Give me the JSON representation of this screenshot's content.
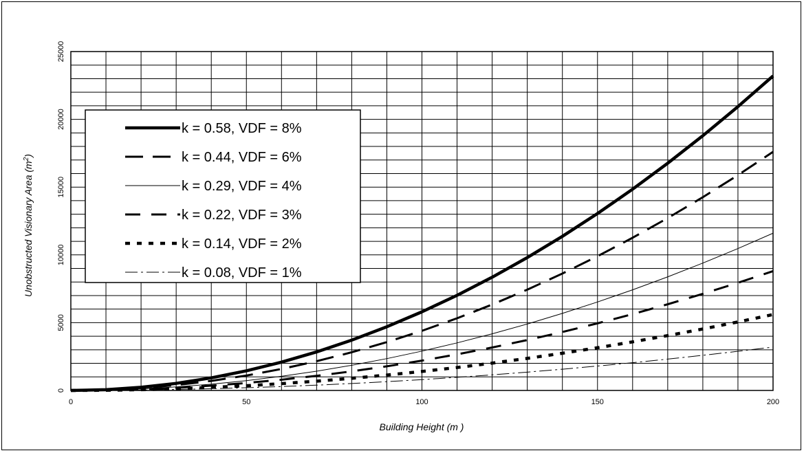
{
  "chart_data": {
    "type": "line",
    "title": "",
    "xlabel": "Building Height (m )",
    "ylabel": "Unobstructed Visionary Area (m²)",
    "ylabel_main": "Unobstructed Visionary Area (m",
    "ylabel_sup": "2",
    "ylabel_close": ")",
    "xlim": [
      0,
      200
    ],
    "ylim": [
      0,
      25000
    ],
    "x_ticks": [
      0,
      50,
      100,
      150,
      200
    ],
    "y_ticks": [
      0,
      5000,
      10000,
      15000,
      20000,
      25000
    ],
    "grid": true,
    "legend_position": "left",
    "x": [
      0,
      10,
      20,
      30,
      40,
      50,
      60,
      70,
      80,
      90,
      100,
      110,
      120,
      130,
      140,
      150,
      160,
      170,
      180,
      190,
      200
    ],
    "series": [
      {
        "name": "k = 0.58, VDF = 8%",
        "values": [
          0,
          58,
          232,
          522,
          928,
          1450,
          2088,
          2842,
          3712,
          4698,
          5800,
          7018,
          8352,
          9802,
          11368,
          13050,
          14848,
          16762,
          18792,
          20938,
          23200
        ],
        "style": "thick-solid"
      },
      {
        "name": "k = 0.44, VDF = 6%",
        "values": [
          0,
          44,
          176,
          396,
          704,
          1100,
          1584,
          2156,
          2816,
          3564,
          4400,
          5324,
          6336,
          7436,
          8624,
          9900,
          11264,
          12716,
          14256,
          15884,
          17600
        ],
        "style": "long-dash"
      },
      {
        "name": "k = 0.29, VDF = 4%",
        "values": [
          0,
          29,
          116,
          261,
          464,
          725,
          1044,
          1421,
          1856,
          2349,
          2900,
          3509,
          4176,
          4901,
          5684,
          6525,
          7424,
          8381,
          9396,
          10469,
          11600
        ],
        "style": "thin-solid"
      },
      {
        "name": "k = 0.22, VDF = 3%",
        "values": [
          0,
          22,
          88,
          198,
          352,
          550,
          792,
          1078,
          1408,
          1782,
          2200,
          2662,
          3168,
          3718,
          4312,
          4950,
          5632,
          6358,
          7128,
          7942,
          8800
        ],
        "style": "medium-dash"
      },
      {
        "name": "k = 0.14, VDF = 2%",
        "values": [
          0,
          14,
          56,
          126,
          224,
          350,
          504,
          686,
          896,
          1134,
          1400,
          1694,
          2016,
          2366,
          2744,
          3150,
          3584,
          4046,
          4536,
          5054,
          5600
        ],
        "style": "dotted"
      },
      {
        "name": "k = 0.08, VDF = 1%",
        "values": [
          0,
          8,
          32,
          72,
          128,
          200,
          288,
          392,
          512,
          648,
          800,
          968,
          1152,
          1352,
          1568,
          1800,
          2048,
          2312,
          2592,
          2888,
          3200
        ],
        "style": "dash-dot"
      }
    ]
  }
}
